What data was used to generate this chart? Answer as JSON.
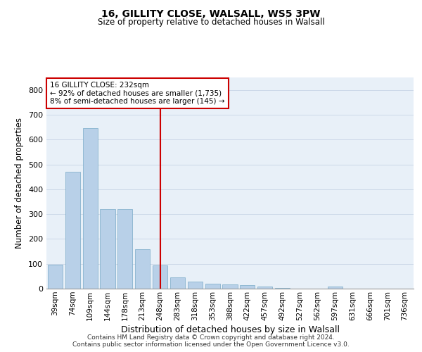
{
  "title1": "16, GILLITY CLOSE, WALSALL, WS5 3PW",
  "title2": "Size of property relative to detached houses in Walsall",
  "xlabel": "Distribution of detached houses by size in Walsall",
  "ylabel": "Number of detached properties",
  "categories": [
    "39sqm",
    "74sqm",
    "109sqm",
    "144sqm",
    "178sqm",
    "213sqm",
    "248sqm",
    "283sqm",
    "318sqm",
    "353sqm",
    "388sqm",
    "422sqm",
    "457sqm",
    "492sqm",
    "527sqm",
    "562sqm",
    "597sqm",
    "631sqm",
    "666sqm",
    "701sqm",
    "736sqm"
  ],
  "values": [
    95,
    470,
    645,
    320,
    320,
    158,
    93,
    45,
    28,
    20,
    16,
    13,
    8,
    3,
    0,
    0,
    8,
    0,
    0,
    0,
    0
  ],
  "bar_color": "#b8d0e8",
  "bar_edge_color": "#7aaac8",
  "vline_index": 6,
  "vline_color": "#cc0000",
  "annotation_line1": "16 GILLITY CLOSE: 232sqm",
  "annotation_line2": "← 92% of detached houses are smaller (1,735)",
  "annotation_line3": "8% of semi-detached houses are larger (145) →",
  "annotation_box_edgecolor": "#cc0000",
  "annotation_bg": "#ffffff",
  "grid_color": "#ccd8e8",
  "background_color": "#e8f0f8",
  "footer1": "Contains HM Land Registry data © Crown copyright and database right 2024.",
  "footer2": "Contains public sector information licensed under the Open Government Licence v3.0.",
  "ylim": [
    0,
    850
  ],
  "yticks": [
    0,
    100,
    200,
    300,
    400,
    500,
    600,
    700,
    800
  ]
}
